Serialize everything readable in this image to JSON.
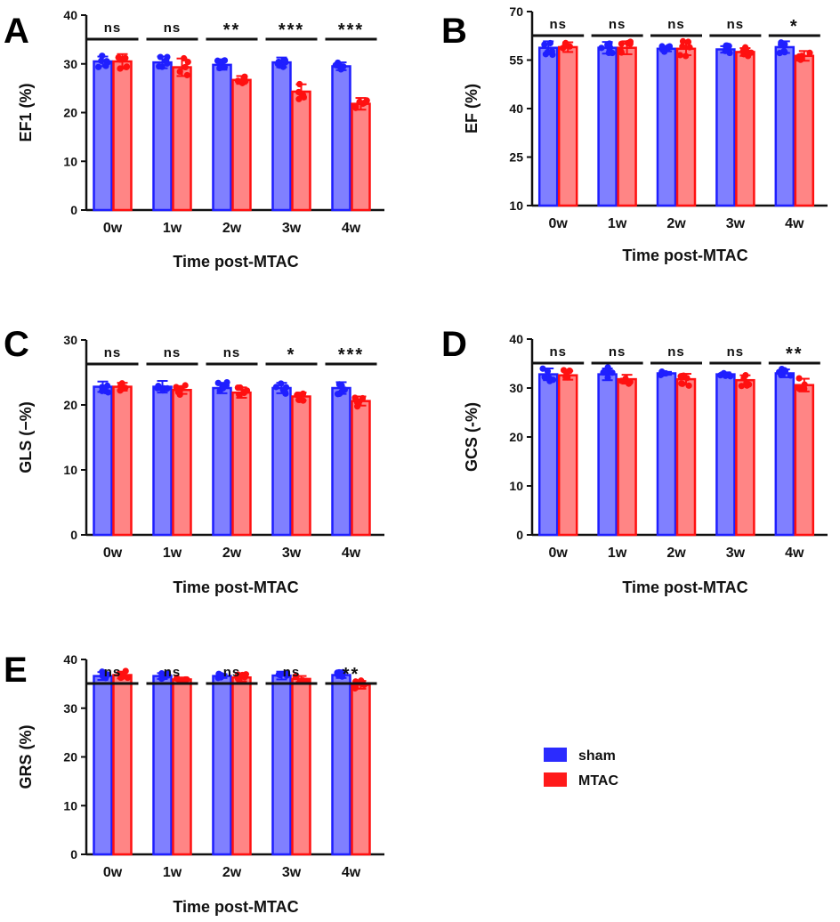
{
  "chart_data": [
    {
      "panel": "A",
      "type": "bar",
      "ylabel": "EF1 (%)",
      "xlabel": "Time post-MTAC",
      "categories": [
        "0w",
        "1w",
        "2w",
        "3w",
        "4w"
      ],
      "ylim": [
        0,
        40
      ],
      "yticks": [
        "0",
        "10",
        "20",
        "30",
        "40"
      ],
      "series": [
        {
          "name": "sham",
          "values": [
            30.5,
            30.3,
            29.8,
            30.3,
            29.5
          ],
          "sd": [
            1.0,
            1.2,
            1.0,
            1.0,
            0.8
          ]
        },
        {
          "name": "MTAC",
          "values": [
            30.5,
            29.3,
            26.7,
            24.3,
            21.8
          ],
          "sd": [
            1.5,
            1.8,
            0.8,
            1.5,
            1.2
          ]
        }
      ],
      "significance": [
        "ns",
        "ns",
        "**",
        "***",
        "***"
      ]
    },
    {
      "panel": "B",
      "type": "bar",
      "ylabel": "EF (%)",
      "xlabel": "Time post-MTAC",
      "categories": [
        "0w",
        "1w",
        "2w",
        "3w",
        "4w"
      ],
      "ylim": [
        10,
        70
      ],
      "yticks": [
        "10",
        "25",
        "40",
        "55",
        "70"
      ],
      "series": [
        {
          "name": "sham",
          "values": [
            58.8,
            58.8,
            58.5,
            58.3,
            59.0
          ],
          "sd": [
            2.0,
            1.8,
            0.8,
            1.0,
            1.8
          ]
        },
        {
          "name": "MTAC",
          "values": [
            59.0,
            58.8,
            58.5,
            57.5,
            56.3
          ],
          "sd": [
            1.5,
            2.0,
            2.0,
            1.2,
            1.5
          ]
        }
      ],
      "significance": [
        "ns",
        "ns",
        "ns",
        "ns",
        "*"
      ]
    },
    {
      "panel": "C",
      "type": "bar",
      "ylabel": "GLS (−%)",
      "xlabel": "Time post-MTAC",
      "categories": [
        "0w",
        "1w",
        "2w",
        "3w",
        "4w"
      ],
      "ylim": [
        0,
        30
      ],
      "yticks": [
        "0",
        "10",
        "20",
        "30"
      ],
      "series": [
        {
          "name": "sham",
          "values": [
            22.8,
            22.8,
            22.6,
            22.6,
            22.6
          ],
          "sd": [
            0.8,
            0.9,
            0.8,
            0.8,
            0.9
          ]
        },
        {
          "name": "MTAC",
          "values": [
            22.8,
            22.3,
            21.9,
            21.3,
            20.6
          ],
          "sd": [
            0.6,
            0.6,
            0.8,
            0.6,
            0.7
          ]
        }
      ],
      "significance": [
        "ns",
        "ns",
        "ns",
        "*",
        "***"
      ]
    },
    {
      "panel": "D",
      "type": "bar",
      "ylabel": "GCS (-%)",
      "xlabel": "Time post-MTAC",
      "categories": [
        "0w",
        "1w",
        "2w",
        "3w",
        "4w"
      ],
      "ylim": [
        0,
        40
      ],
      "yticks": [
        "0",
        "10",
        "20",
        "30",
        "40"
      ],
      "series": [
        {
          "name": "sham",
          "values": [
            32.8,
            32.8,
            33.0,
            32.8,
            33.0
          ],
          "sd": [
            1.2,
            1.2,
            0.3,
            0.4,
            0.8
          ]
        },
        {
          "name": "MTAC",
          "values": [
            32.6,
            31.8,
            31.8,
            31.6,
            30.6
          ],
          "sd": [
            0.9,
            0.9,
            1.1,
            1.0,
            1.3
          ]
        }
      ],
      "significance": [
        "ns",
        "ns",
        "ns",
        "ns",
        "**"
      ]
    },
    {
      "panel": "E",
      "type": "bar",
      "ylabel": "GRS (%)",
      "xlabel": "Time post-MTAC",
      "categories": [
        "0w",
        "1w",
        "2w",
        "3w",
        "4w"
      ],
      "ylim": [
        0,
        40
      ],
      "yticks": [
        "0",
        "10",
        "20",
        "30",
        "40"
      ],
      "series": [
        {
          "name": "sham",
          "values": [
            36.6,
            36.6,
            36.6,
            36.7,
            36.8
          ],
          "sd": [
            0.8,
            0.6,
            0.4,
            0.8,
            0.6
          ]
        },
        {
          "name": "MTAC",
          "values": [
            36.8,
            35.9,
            36.3,
            36.0,
            34.8
          ],
          "sd": [
            0.7,
            0.4,
            0.8,
            0.6,
            0.8
          ]
        }
      ],
      "significance": [
        "ns",
        "ns",
        "ns",
        "ns",
        "**"
      ]
    }
  ],
  "legend": {
    "items": [
      {
        "label": "sham",
        "color": "#2b2bff"
      },
      {
        "label": "MTAC",
        "color": "#ff1a1a"
      }
    ]
  },
  "colors": {
    "sham_fill": "#8080ff",
    "sham_edge": "#1f1fff",
    "mtac_fill": "#ff8585",
    "mtac_edge": "#ff1010"
  }
}
